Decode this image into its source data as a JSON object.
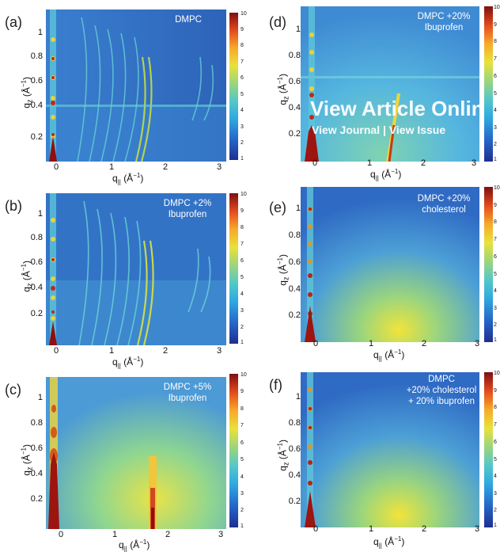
{
  "axis": {
    "x_label": "q",
    "x_sub": "||",
    "x_unit": "(Å",
    "x_unit_exp": "−1",
    "x_unit_close": ")",
    "y_label": "q",
    "y_sub": "z",
    "y_unit": "(Å",
    "y_unit_exp": "−1",
    "y_unit_close": ")",
    "y_ticks": [
      "1",
      "0.8",
      "0.6",
      "0.4",
      "0.2"
    ],
    "x_ticks": [
      "0",
      "1",
      "2",
      "3"
    ],
    "cbar_ticks": [
      "10",
      "9",
      "8",
      "7",
      "6",
      "5",
      "4",
      "3",
      "2",
      "1"
    ]
  },
  "panels": [
    {
      "label": "(a)",
      "annot": [
        "DMPC"
      ]
    },
    {
      "label": "(b)",
      "annot": [
        "DMPC +2%",
        "Ibuprofen"
      ]
    },
    {
      "label": "(c)",
      "annot": [
        "DMPC +5%",
        "Ibuprofen"
      ]
    },
    {
      "label": "(d)",
      "annot": [
        "DMPC +20%",
        "Ibuprofen"
      ]
    },
    {
      "label": "(e)",
      "annot": [
        "DMPC +20%",
        "cholesterol"
      ]
    },
    {
      "label": "(f)",
      "annot": [
        "DMPC",
        "+20% cholesterol",
        "+ 20% ibuprofen"
      ]
    }
  ],
  "overlay": {
    "title": "View Article Online",
    "links": "View Journal | View Issue"
  },
  "colors": {
    "background_blue": "#2f6fc4",
    "mid_cyan": "#4cc3d6",
    "peak_yellow": "#f1e43a",
    "peak_red": "#a4110f"
  }
}
